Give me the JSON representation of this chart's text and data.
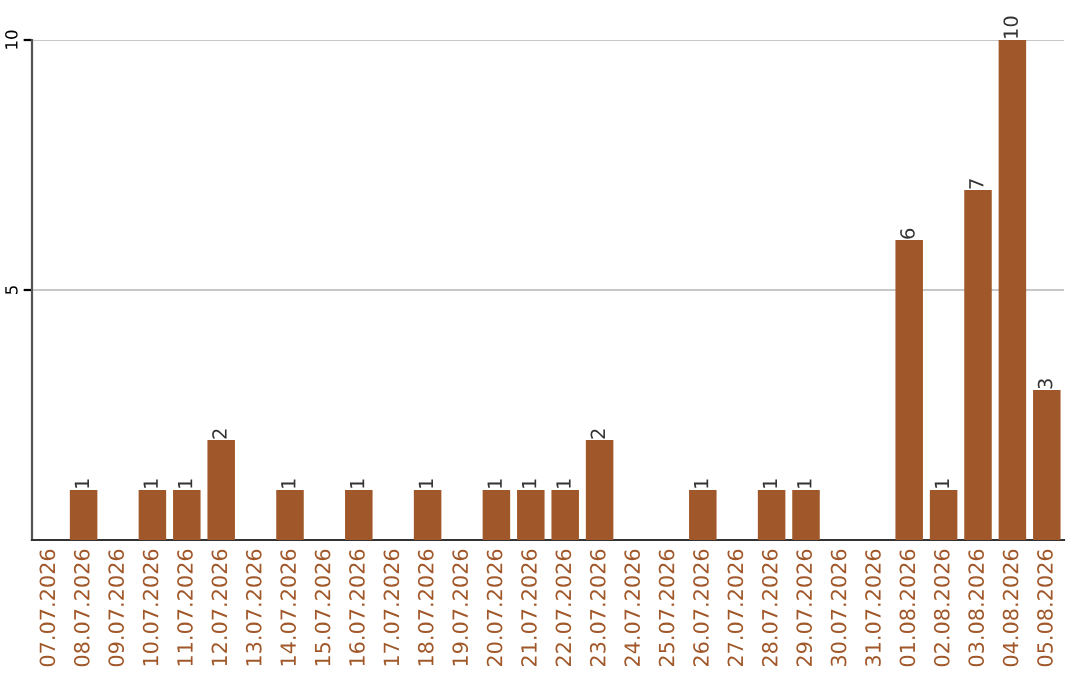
{
  "chart_data": {
    "type": "bar",
    "categories": [
      "07.07.2026",
      "08.07.2026",
      "09.07.2026",
      "10.07.2026",
      "11.07.2026",
      "12.07.2026",
      "13.07.2026",
      "14.07.2026",
      "15.07.2026",
      "16.07.2026",
      "17.07.2026",
      "18.07.2026",
      "19.07.2026",
      "20.07.2026",
      "21.07.2026",
      "22.07.2026",
      "23.07.2026",
      "24.07.2026",
      "25.07.2026",
      "26.07.2026",
      "27.07.2026",
      "28.07.2026",
      "29.07.2026",
      "30.07.2026",
      "31.07.2026",
      "01.08.2026",
      "02.08.2026",
      "03.08.2026",
      "04.08.2026",
      "05.08.2026"
    ],
    "values": [
      0,
      1,
      0,
      1,
      1,
      2,
      0,
      1,
      0,
      1,
      0,
      1,
      0,
      1,
      1,
      1,
      2,
      0,
      0,
      1,
      0,
      1,
      1,
      0,
      0,
      6,
      1,
      7,
      10,
      3
    ],
    "value_labels": [
      null,
      "1",
      null,
      "1",
      "1",
      "2",
      null,
      "1",
      null,
      "1",
      null,
      "1",
      null,
      "1",
      "1",
      "1",
      "2",
      null,
      null,
      "1",
      null,
      "1",
      "1",
      null,
      null,
      "6",
      "1",
      "7",
      "10",
      "3"
    ],
    "color": "#a0582a",
    "ylim": [
      0,
      10
    ],
    "yticks": [
      5,
      10
    ],
    "grid": "y"
  }
}
